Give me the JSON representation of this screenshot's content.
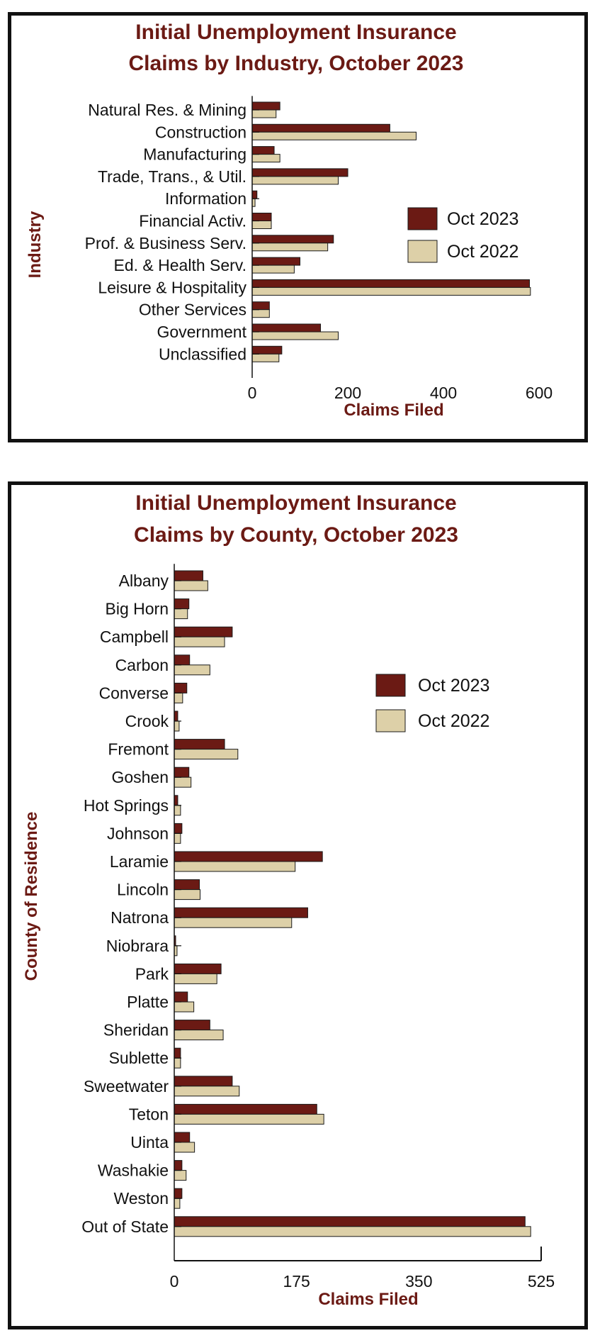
{
  "chart_data": [
    {
      "type": "bar",
      "orientation": "horizontal",
      "title": "Initial Unemployment Insurance Claims by Industry, October 2023",
      "title_lines": [
        "Initial Unemployment Insurance",
        "Claims by Industry, October 2023"
      ],
      "xlabel": "Claims Filed",
      "ylabel": "Industry",
      "xlim": [
        0,
        600
      ],
      "xticks": [
        0,
        200,
        400,
        600
      ],
      "legend_position": "right",
      "grid": false,
      "categories": [
        "Natural Res. & Mining",
        "Construction",
        "Manufacturing",
        "Trade, Trans., & Util.",
        "Information",
        "Financial Activ.",
        "Prof. & Business Serv.",
        "Ed. & Health Serv.",
        "Leisure & Hospitality",
        "Other Services",
        "Government",
        "Unclassified"
      ],
      "series": [
        {
          "name": "Oct 2023",
          "color": "#6b1a14",
          "values": [
            58,
            288,
            46,
            200,
            10,
            40,
            170,
            100,
            580,
            36,
            143,
            62
          ]
        },
        {
          "name": "Oct 2022",
          "color": "#ddd0a8",
          "values": [
            50,
            343,
            58,
            180,
            6,
            40,
            158,
            88,
            582,
            36,
            180,
            56
          ]
        }
      ]
    },
    {
      "type": "bar",
      "orientation": "horizontal",
      "title": "Initial Unemployment Insurance Claims by County, October 2023",
      "title_lines": [
        "Initial Unemployment Insurance",
        "Claims by County, October 2023"
      ],
      "xlabel": "Claims Filed",
      "ylabel": "County of Residence",
      "xlim": [
        0,
        525
      ],
      "xticks": [
        0,
        175,
        350,
        525
      ],
      "legend_position": "top-right",
      "grid": false,
      "categories": [
        "Albany",
        "Big Horn",
        "Campbell",
        "Carbon",
        "Converse",
        "Crook",
        "Fremont",
        "Goshen",
        "Hot Springs",
        "Johnson",
        "Laramie",
        "Lincoln",
        "Natrona",
        "Niobrara",
        "Park",
        "Platte",
        "Sheridan",
        "Sublette",
        "Sweetwater",
        "Teton",
        "Uinta",
        "Washakie",
        "Weston",
        "Out of State"
      ],
      "series": [
        {
          "name": "Oct 2023",
          "color": "#6b1a14",
          "values": [
            41,
            21,
            83,
            22,
            18,
            5,
            72,
            21,
            5,
            11,
            212,
            36,
            191,
            2,
            67,
            19,
            51,
            9,
            83,
            204,
            22,
            11,
            11,
            502
          ]
        },
        {
          "name": "Oct 2022",
          "color": "#ddd0a8",
          "values": [
            48,
            19,
            72,
            51,
            12,
            7,
            91,
            24,
            9,
            9,
            173,
            37,
            168,
            4,
            61,
            28,
            70,
            9,
            93,
            214,
            29,
            17,
            8,
            510
          ]
        }
      ]
    }
  ]
}
